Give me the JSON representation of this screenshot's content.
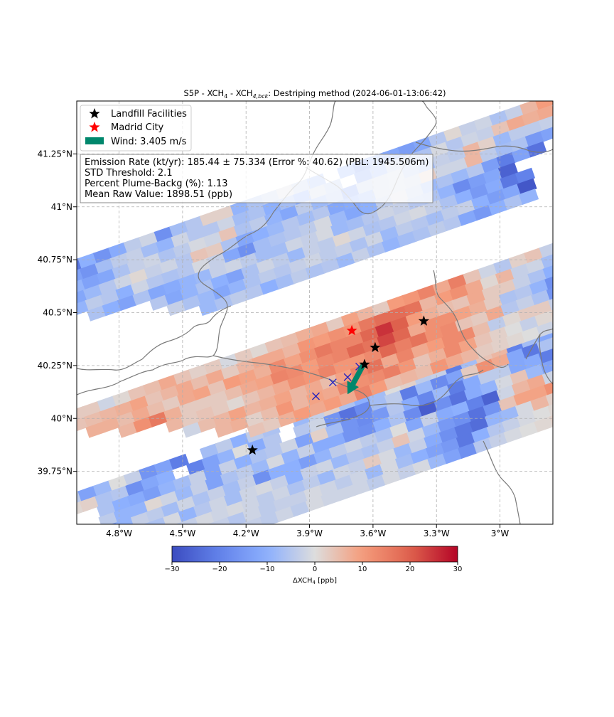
{
  "chart_data": {
    "type": "heatmap",
    "title": "S5P - XCH₄ - XCH₄,bck: Destriping method (2024-06-01-13:06:42)",
    "xlim": [
      -5.0,
      -2.75
    ],
    "ylim": [
      39.5,
      41.5
    ],
    "x_ticks": [
      {
        "value": -4.8,
        "label": "4.8°W"
      },
      {
        "value": -4.5,
        "label": "4.5°W"
      },
      {
        "value": -4.2,
        "label": "4.2°W"
      },
      {
        "value": -3.9,
        "label": "3.9°W"
      },
      {
        "value": -3.6,
        "label": "3.6°W"
      },
      {
        "value": -3.3,
        "label": "3.3°W"
      },
      {
        "value": -3.0,
        "label": "3°W"
      }
    ],
    "y_ticks": [
      {
        "value": 39.75,
        "label": "39.75°N"
      },
      {
        "value": 40.0,
        "label": "40°N"
      },
      {
        "value": 40.25,
        "label": "40.25°N"
      },
      {
        "value": 40.5,
        "label": "40.5°N"
      },
      {
        "value": 40.75,
        "label": "40.75°N"
      },
      {
        "value": 41.0,
        "label": "41°N"
      },
      {
        "value": 41.25,
        "label": "41.25°N"
      }
    ],
    "grid": true,
    "legend": {
      "placement": "top-left",
      "entries": [
        {
          "label": "Landfill Facilities",
          "marker": "black-star"
        },
        {
          "label": "Madrid City",
          "marker": "red-star"
        },
        {
          "label": "Wind: 3.405 m/s",
          "marker": "green-rectangle"
        }
      ]
    },
    "info_box": [
      "Emission Rate (kt/yr): 185.44 ± 75.334 (Error %: 40.62) (PBL: 1945.506m)",
      "STD Threshold: 2.1",
      "Percent Plume-Backg (%): 1.13",
      "Mean Raw Value: 1898.51 (ppb)"
    ],
    "landfills": [
      [
        -3.64,
        40.255
      ],
      [
        -3.59,
        40.335
      ],
      [
        -3.36,
        40.46
      ],
      [
        -4.17,
        39.85
      ]
    ],
    "madrid_city": [
      -3.7,
      40.415
    ],
    "plume_markers": [
      [
        -3.87,
        40.105
      ],
      [
        -3.79,
        40.17
      ],
      [
        -3.72,
        40.195
      ],
      [
        -3.665,
        40.245
      ]
    ],
    "wind": {
      "speed_ms": 3.405,
      "start": [
        -3.645,
        40.255
      ],
      "end": [
        -3.72,
        40.115
      ]
    },
    "colorbar": {
      "label": "ΔXCH₄ [ppb]",
      "min": -30,
      "max": 30,
      "ticks": [
        -30,
        -20,
        -10,
        0,
        10,
        20,
        30
      ],
      "tick_labels": [
        "−30",
        "−20",
        "−10",
        "0",
        "10",
        "20",
        "30"
      ],
      "colormap": "coolwarm"
    },
    "cell_shape": {
      "width_deg": 0.082,
      "height_deg": 0.052,
      "along_track_step": [
        0.072,
        0.025
      ],
      "cross_track_step": [
        0.0085,
        -0.0497
      ]
    },
    "swath": [
      {
        "start": [
          -5.02,
          39.62
        ],
        "vals": [
          [
            -4,
            -13,
            -8,
            0,
            -3,
            -16,
            -13,
            -21,
            null,
            -7,
            -4,
            -10,
            -4,
            -6,
            null,
            -8,
            -3,
            2,
            -6,
            -10,
            -7,
            0,
            2,
            -4,
            -3,
            -21,
            -7,
            4,
            6,
            -20,
            -7,
            -12,
            -4,
            1,
            5,
            9,
            -3,
            -2
          ],
          [
            1,
            2,
            -6,
            -5,
            -17,
            -12,
            -10,
            null,
            -20,
            -13,
            -9,
            0,
            -11,
            -5,
            null,
            -5,
            -2,
            -16,
            -23,
            -18,
            -7,
            -4,
            -21,
            -8,
            -18,
            -13,
            3,
            12,
            8,
            -12,
            -22,
            -6,
            4,
            7,
            -1,
            3,
            8,
            null
          ],
          [
            null,
            null,
            -6,
            -10,
            -11,
            -14,
            -9,
            -7,
            -3,
            -13,
            -3,
            -10,
            -6,
            -5,
            -2,
            -13,
            2,
            -7,
            -16,
            -18,
            -15,
            -5,
            -11,
            -19,
            -8,
            -21,
            -11,
            -4,
            -4,
            -12,
            -11,
            -21,
            -17,
            -2,
            10,
            14,
            13,
            11
          ],
          [
            null,
            null,
            -4,
            -9,
            -9,
            1,
            -2,
            -8,
            -3,
            -13,
            -6,
            -4,
            -8,
            -1,
            -9,
            -3,
            -11,
            -11,
            -16,
            -17,
            -10,
            -6,
            -18,
            -27,
            -17,
            -23,
            -11,
            -9,
            -1,
            4,
            -8,
            -13,
            -17,
            -4,
            3,
            7,
            9,
            4
          ],
          [
            null,
            null,
            -14,
            -9,
            -3,
            -4,
            -7,
            -2,
            -6,
            -3,
            -7,
            -3,
            -17,
            -10,
            -10,
            -14,
            -9,
            -4,
            -2,
            -4,
            -6,
            0,
            -12,
            -3,
            -11,
            -10,
            -20,
            -26,
            -2,
            6,
            8,
            -2,
            -13,
            -6,
            0,
            14,
            5,
            12
          ],
          [
            null,
            null,
            -13,
            -1,
            -6,
            -6,
            -1,
            -9,
            -5,
            -2,
            -7,
            -2,
            -1,
            -3,
            -10,
            -3,
            -2,
            -8,
            -5,
            -6,
            -3,
            4,
            -2,
            -8,
            -15,
            -17,
            -23,
            -16,
            4,
            9,
            9,
            12,
            3,
            -1,
            11,
            12,
            10,
            4
          ],
          [
            null,
            null,
            2,
            -3,
            -7,
            -1,
            -4,
            -3,
            -1,
            -2,
            -1,
            -2,
            -4,
            -2,
            -6,
            -4,
            -8,
            -2,
            -3,
            3,
            -1,
            -8,
            -3,
            -11,
            -17,
            -22,
            -24,
            -9,
            -8,
            -1,
            6,
            2,
            4,
            6,
            12,
            12,
            5,
            5
          ],
          [
            null,
            null,
            null,
            null,
            null,
            null,
            null,
            -5,
            -3,
            -3,
            -5,
            -2,
            -4,
            -3,
            -3,
            -1,
            -2,
            -4,
            -2,
            -8,
            -1,
            -7,
            -10,
            -13,
            -15,
            -22,
            -10,
            -5,
            -3,
            -1,
            0,
            1,
            2,
            5,
            9,
            11,
            6,
            4
          ],
          [
            null,
            null,
            null,
            null,
            null,
            null,
            null,
            null,
            -3,
            -6,
            -3,
            -3,
            -4,
            -2,
            -4,
            -1,
            -2,
            -2,
            -2,
            -4,
            -1,
            -3,
            -1,
            -8,
            -13,
            -17,
            -5,
            -3,
            -1,
            0,
            1,
            2,
            5,
            8,
            6,
            5,
            4,
            3
          ]
        ]
      },
      {
        "start": [
          -5.0,
          40.02
        ],
        "vals": [
          [
            3,
            3,
            -2,
            1,
            4,
            5,
            8,
            4,
            2,
            3,
            -1,
            3,
            1,
            4,
            5,
            7,
            8,
            3,
            9,
            6,
            3,
            10,
            11,
            14,
            8,
            15,
            4,
            -2,
            -5,
            2,
            4,
            -3,
            -5,
            -8,
            -14,
            -23,
            -12,
            -8
          ],
          [
            4,
            5,
            6,
            7,
            9,
            4,
            6,
            8,
            5,
            8,
            3,
            6,
            8,
            8,
            6,
            11,
            10,
            12,
            11,
            16,
            18,
            18,
            17,
            6,
            10,
            12,
            8,
            1,
            6,
            -3,
            -2,
            -7,
            -5,
            -14,
            -21,
            -25,
            -18,
            -9
          ],
          [
            null,
            7,
            7,
            5,
            8,
            5,
            3,
            8,
            9,
            4,
            10,
            9,
            7,
            13,
            9,
            12,
            16,
            14,
            14,
            19,
            25,
            20,
            10,
            7,
            5,
            4,
            8,
            3,
            3,
            -3,
            -6,
            -10,
            -15,
            -20,
            -20,
            -17,
            -11,
            -7
          ],
          [
            null,
            null,
            null,
            6,
            12,
            16,
            7,
            3,
            3,
            3,
            5,
            8,
            9,
            14,
            13,
            10,
            13,
            14,
            19,
            17,
            23,
            19,
            8,
            12,
            12,
            9,
            7,
            3,
            -6,
            -5,
            -9,
            -17,
            -12,
            -24,
            -21,
            -19,
            -5,
            -9
          ],
          [
            null,
            null,
            null,
            null,
            null,
            null,
            6,
            3,
            4,
            3,
            1,
            4,
            6,
            8,
            12,
            11,
            14,
            11,
            11,
            13,
            19,
            15,
            17,
            12,
            13,
            4,
            3,
            8,
            -5,
            -3,
            -6,
            -16,
            -14,
            -17,
            -13,
            -9,
            -3,
            -4
          ],
          [
            null,
            null,
            null,
            null,
            null,
            null,
            null,
            -2,
            5,
            6,
            9,
            6,
            7,
            9,
            6,
            8,
            5,
            9,
            14,
            17,
            8,
            14,
            8,
            10,
            13,
            13,
            5,
            -4,
            1,
            3,
            3,
            -3,
            -5,
            -7,
            -3,
            -4,
            -2,
            -1
          ],
          [
            null,
            null,
            null,
            null,
            null,
            null,
            null,
            null,
            null,
            6,
            7,
            2,
            5,
            11,
            6,
            9,
            8,
            14,
            12,
            13,
            15,
            11,
            4,
            7,
            13,
            9,
            4,
            2,
            0,
            -3,
            1,
            2,
            -1,
            -2,
            -1,
            0,
            1,
            2
          ],
          [
            null,
            null,
            null,
            null,
            null,
            null,
            null,
            null,
            null,
            null,
            null,
            4,
            3,
            7,
            10,
            8,
            10,
            8,
            14,
            10,
            5,
            6,
            5,
            11,
            8,
            6,
            3,
            2,
            1,
            0,
            -2,
            1,
            2,
            3,
            1,
            0,
            2,
            1
          ]
        ]
      },
      {
        "start": [
          -5.02,
          40.72
        ],
        "vals": [
          [
            -22,
            -10,
            -16,
            -11,
            -4,
            -2,
            -17,
            -7,
            -5,
            2,
            2,
            -9,
            -6,
            -4,
            -1,
            -4,
            -8,
            null,
            -10,
            -18,
            -10,
            -12,
            -14,
            -12,
            -5,
            1,
            -3,
            -2,
            -6,
            -3,
            6,
            10,
            13,
            -1,
            -5,
            -6,
            -11,
            null
          ],
          [
            -13,
            -16,
            -7,
            -4,
            -3,
            -7,
            -9,
            -2,
            -5,
            -5,
            -2,
            -7,
            -6,
            -10,
            -7,
            -11,
            -3,
            -5,
            null,
            -15,
            -9,
            -4,
            -5,
            -6,
            -1,
            -5,
            -2,
            -3,
            4,
            8,
            7,
            8,
            -1,
            10,
            -5,
            null,
            null,
            null
          ],
          [
            -9,
            -13,
            -12,
            -6,
            -3,
            -2,
            -6,
            -4,
            -1,
            -2,
            4,
            -6,
            -4,
            -9,
            -12,
            -4,
            -8,
            -6,
            -16,
            -4,
            -3,
            -2,
            -5,
            -7,
            -3,
            -4,
            6,
            2,
            -8,
            -4,
            -4,
            -3,
            -12,
            -8,
            null,
            null,
            null,
            null
          ],
          [
            -12,
            -8,
            -5,
            -2,
            1,
            -3,
            -2,
            -5,
            4,
            3,
            -6,
            -12,
            -10,
            -8,
            -5,
            -7,
            -5,
            -12,
            -11,
            -9,
            -3,
            -2,
            -3,
            3,
            -2,
            -2,
            6,
            -4,
            -7,
            -6,
            -15,
            -13,
            -18,
            null,
            null,
            null,
            null,
            null
          ],
          [
            -9,
            -4,
            -5,
            -10,
            -2,
            -5,
            -6,
            -5,
            -1,
            -3,
            -12,
            -17,
            -7,
            -6,
            -5,
            -4,
            -1,
            -8,
            -12,
            -10,
            -4,
            -1,
            -4,
            -8,
            -6,
            -8,
            -5,
            -14,
            -21,
            -13,
            -23,
            null,
            null,
            null,
            null,
            null,
            null,
            null
          ],
          [
            null,
            -6,
            -10,
            -13,
            -6,
            -12,
            -11,
            -9,
            -8,
            -3,
            -2,
            -4,
            -7,
            -7,
            -2,
            -3,
            -1,
            -8,
            -7,
            -5,
            -2,
            -3,
            -5,
            -6,
            -9,
            -18,
            -14,
            -12,
            -26,
            null,
            null,
            null,
            null,
            null,
            null,
            null,
            null,
            null
          ],
          [
            null,
            null,
            null,
            null,
            null,
            -5,
            -12,
            -9,
            -6,
            -10,
            -13,
            -6,
            -2,
            -4,
            -8,
            -3,
            -4,
            1,
            -2,
            -6,
            -5,
            -2,
            -1,
            -3,
            -6,
            -10,
            -15,
            -11,
            -22,
            -20,
            null,
            null,
            null,
            null,
            null,
            null,
            null,
            null
          ],
          [
            null,
            null,
            null,
            null,
            null,
            null,
            -3,
            -6,
            -8,
            -12,
            -9,
            -6,
            -4,
            -5,
            -3,
            -2,
            -4,
            -3,
            -6,
            -2,
            -8,
            -4,
            -5,
            -7,
            -4,
            -3,
            -10,
            -14,
            -12,
            -28,
            null,
            null,
            null,
            null,
            null,
            null,
            null,
            null
          ],
          [
            null,
            null,
            null,
            null,
            null,
            null,
            null,
            null,
            -8,
            -6,
            -4,
            -5,
            -10,
            -7,
            -4,
            -6,
            -5,
            -8,
            -3,
            -6,
            -9,
            -7,
            -6,
            -4,
            -5,
            -12,
            -15,
            -10,
            -6,
            -9,
            null,
            null,
            null,
            null,
            null,
            null,
            null,
            null
          ]
        ]
      }
    ]
  }
}
